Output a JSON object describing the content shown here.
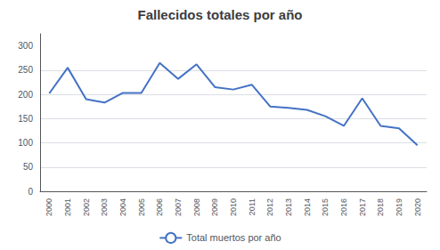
{
  "chart_data": {
    "type": "line",
    "title": "Fallecidos totales por año",
    "categories": [
      "2000",
      "2001",
      "2002",
      "2003",
      "2004",
      "2005",
      "2006",
      "2007",
      "2008",
      "2009",
      "2010",
      "2011",
      "2012",
      "2013",
      "2014",
      "2015",
      "2016",
      "2017",
      "2018",
      "2019",
      "2020"
    ],
    "series": [
      {
        "name": "Total muertos por año",
        "color": "#4472c4",
        "values": [
          202,
          255,
          190,
          183,
          203,
          203,
          265,
          232,
          262,
          215,
          210,
          220,
          175,
          172,
          168,
          155,
          135,
          192,
          135,
          130,
          95
        ]
      }
    ],
    "ylim": [
      0,
      325
    ],
    "yticks": [
      0,
      50,
      100,
      150,
      200,
      250,
      300
    ],
    "grid": true,
    "legend": "bottom"
  }
}
